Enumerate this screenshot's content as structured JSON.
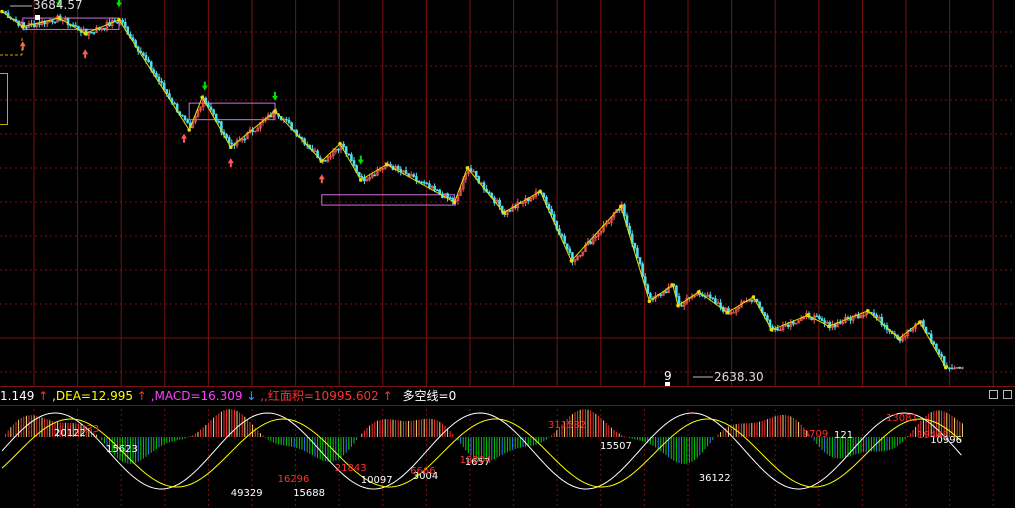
{
  "indicator_bar": {
    "dif_label": "1.149",
    "dif_arrow": "↑",
    "dea_label": ",DEA=12.995",
    "dea_arrow": "↑",
    "macd_label": ",MACD=16.309",
    "macd_arrow": "↓",
    "red_area_label": ",,红面积=10995.602",
    "red_area_arrow": "↑",
    "long_short_label": "多空线=0"
  },
  "colors": {
    "background": "#000000",
    "grid": "#7a1010",
    "candle_up": "#ff5a5a",
    "candle_down": "#4fe0f0",
    "zigzag": "#e8e000",
    "zone_box": "#d070e0",
    "macd_pos": "#ff3030",
    "macd_pos_alt": "#e8e070",
    "macd_neg": "#00d000",
    "macd_neg_alt": "#3a70ff",
    "dif_line": "#ffffff",
    "dea_line": "#ffff00",
    "signal_buy": "#ff5a5a",
    "signal_sell": "#00e000",
    "dif_text": "#ffffff",
    "dea_text": "#ffff00",
    "macd_text": "#ff40ff",
    "red_area_text": "#ff3030",
    "long_short_text": "#ffffff"
  },
  "chart_data": {
    "type": "candlestick",
    "price_annotations": {
      "high": "3684.57",
      "low": "2638.30"
    },
    "wave_label": "9",
    "zigzag_points": [
      [
        "h",
        0
      ],
      [
        "l",
        8
      ],
      [
        "h",
        22
      ],
      [
        "l",
        32
      ],
      [
        "h",
        45
      ],
      [
        "l",
        72
      ],
      [
        "h",
        77
      ],
      [
        "l",
        88
      ],
      [
        "h",
        105
      ],
      [
        "l",
        123
      ],
      [
        "h",
        130
      ],
      [
        "l",
        138
      ],
      [
        "h",
        148
      ],
      [
        "l",
        174
      ],
      [
        "h",
        179
      ],
      [
        "l",
        193
      ],
      [
        "h",
        207
      ],
      [
        "l",
        219
      ],
      [
        "h",
        238
      ],
      [
        "l",
        249
      ],
      [
        "h",
        258
      ],
      [
        "l",
        260
      ],
      [
        "h",
        268
      ],
      [
        "l",
        279
      ],
      [
        "h",
        289
      ],
      [
        "l",
        296
      ],
      [
        "h",
        310
      ],
      [
        "l",
        318
      ],
      [
        "h",
        333
      ],
      [
        "l",
        345
      ],
      [
        "h",
        353
      ],
      [
        "l",
        363
      ]
    ],
    "zone_boxes": [
      {
        "from": 8,
        "to": 45,
        "top": 3665,
        "bottom": 3632
      },
      {
        "from": 72,
        "to": 105,
        "top": 3418,
        "bottom": 3370
      },
      {
        "from": 123,
        "to": 174,
        "top": 3152,
        "bottom": 3122
      }
    ],
    "buy_signal_indices": [
      8,
      32,
      70,
      88,
      123
    ],
    "sell_signal_indices": [
      22,
      45,
      78,
      105,
      138
    ],
    "macd": {
      "dif_line_labels": [
        "20122",
        "15623",
        "49329",
        "15688",
        "10097",
        "3004",
        "1657",
        "15507",
        "36122",
        "121",
        "10996"
      ],
      "dea_line_labels": [
        "333",
        "16296",
        "21843",
        "6666",
        "18804",
        "311582",
        "9709",
        "13081",
        "19448"
      ]
    }
  }
}
